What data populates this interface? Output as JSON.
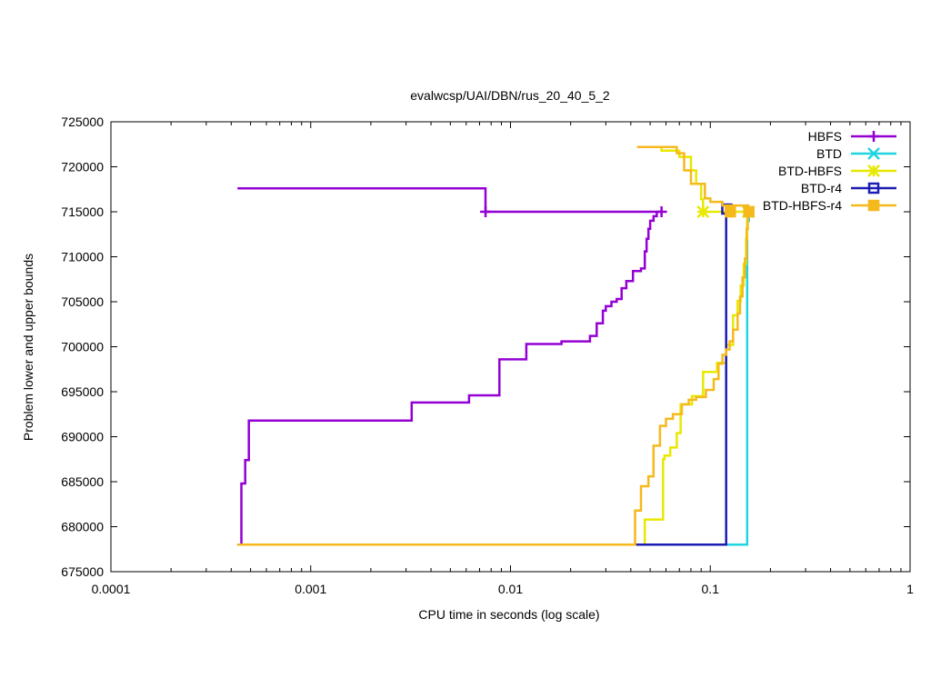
{
  "chart_data": {
    "type": "line",
    "title": "evalwcsp/UAI/DBN/rus_20_40_5_2",
    "xlabel": "CPU time in seconds (log scale)",
    "ylabel": "Problem lower and upper bounds",
    "xscale": "log",
    "xlim": [
      0.0001,
      1
    ],
    "ylim": [
      675000,
      725000
    ],
    "x_ticks": [
      {
        "value": 0.0001,
        "label": "0.0001"
      },
      {
        "value": 0.001,
        "label": "0.001"
      },
      {
        "value": 0.01,
        "label": "0.01"
      },
      {
        "value": 0.1,
        "label": "0.1"
      },
      {
        "value": 1,
        "label": "1"
      }
    ],
    "y_ticks": [
      {
        "value": 675000,
        "label": "675000"
      },
      {
        "value": 680000,
        "label": "680000"
      },
      {
        "value": 685000,
        "label": "685000"
      },
      {
        "value": 690000,
        "label": "690000"
      },
      {
        "value": 695000,
        "label": "695000"
      },
      {
        "value": 700000,
        "label": "700000"
      },
      {
        "value": 705000,
        "label": "705000"
      },
      {
        "value": 710000,
        "label": "710000"
      },
      {
        "value": 715000,
        "label": "715000"
      },
      {
        "value": 720000,
        "label": "720000"
      },
      {
        "value": 725000,
        "label": "725000"
      }
    ],
    "grid": false,
    "legend_position": "top-right",
    "series": [
      {
        "name": "HBFS",
        "color": "#9400d3",
        "marker": "plus",
        "paths": [
          [
            [
              0.00043,
              717600
            ],
            [
              0.0075,
              717600
            ],
            [
              0.0075,
              715000
            ],
            [
              0.057,
              715000
            ]
          ],
          [
            [
              0.00045,
              678000
            ],
            [
              0.00045,
              684800
            ],
            [
              0.00047,
              684800
            ],
            [
              0.00047,
              687400
            ],
            [
              0.00049,
              687400
            ],
            [
              0.00049,
              691800
            ],
            [
              0.0032,
              691800
            ],
            [
              0.0032,
              693800
            ],
            [
              0.0062,
              693800
            ],
            [
              0.0062,
              694600
            ],
            [
              0.0088,
              694600
            ],
            [
              0.0088,
              698600
            ],
            [
              0.012,
              698600
            ],
            [
              0.012,
              700300
            ],
            [
              0.018,
              700300
            ],
            [
              0.018,
              700600
            ],
            [
              0.025,
              700600
            ],
            [
              0.025,
              701200
            ],
            [
              0.027,
              701200
            ],
            [
              0.027,
              702600
            ],
            [
              0.029,
              702600
            ],
            [
              0.029,
              704000
            ],
            [
              0.03,
              704000
            ],
            [
              0.03,
              704500
            ],
            [
              0.032,
              704500
            ],
            [
              0.032,
              705000
            ],
            [
              0.034,
              705000
            ],
            [
              0.034,
              705300
            ],
            [
              0.036,
              705300
            ],
            [
              0.036,
              706500
            ],
            [
              0.038,
              706500
            ],
            [
              0.038,
              707300
            ],
            [
              0.041,
              707300
            ],
            [
              0.041,
              708400
            ],
            [
              0.045,
              708400
            ],
            [
              0.045,
              708700
            ],
            [
              0.047,
              708700
            ],
            [
              0.047,
              710600
            ],
            [
              0.048,
              710600
            ],
            [
              0.048,
              712000
            ],
            [
              0.049,
              712000
            ],
            [
              0.049,
              713100
            ],
            [
              0.05,
              713100
            ],
            [
              0.05,
              714000
            ],
            [
              0.052,
              714000
            ],
            [
              0.052,
              714500
            ],
            [
              0.054,
              714500
            ],
            [
              0.054,
              715000
            ]
          ]
        ],
        "markers": [
          [
            0.0075,
            715000
          ],
          [
            0.057,
            715000
          ]
        ]
      },
      {
        "name": "BTD",
        "color": "#20d4e0",
        "marker": "x",
        "paths": [
          [
            [
              0.00043,
              678000
            ],
            [
              0.153,
              678000
            ],
            [
              0.153,
              714000
            ],
            [
              0.156,
              714000
            ],
            [
              0.156,
              715000
            ]
          ]
        ],
        "markers": [
          [
            0.155,
            715000
          ]
        ]
      },
      {
        "name": "BTD-HBFS",
        "color": "#e8e800",
        "marker": "star",
        "paths": [
          [
            [
              0.047,
              678000
            ],
            [
              0.047,
              680800
            ],
            [
              0.058,
              680800
            ],
            [
              0.058,
              687500
            ],
            [
              0.059,
              687500
            ],
            [
              0.059,
              687900
            ],
            [
              0.063,
              687900
            ],
            [
              0.063,
              688800
            ],
            [
              0.068,
              688800
            ],
            [
              0.068,
              690400
            ],
            [
              0.071,
              690400
            ],
            [
              0.071,
              693600
            ],
            [
              0.081,
              693600
            ],
            [
              0.081,
              694500
            ],
            [
              0.092,
              694500
            ],
            [
              0.092,
              697200
            ],
            [
              0.108,
              697200
            ],
            [
              0.108,
              698200
            ],
            [
              0.12,
              698200
            ],
            [
              0.12,
              700200
            ],
            [
              0.13,
              700200
            ],
            [
              0.13,
              703500
            ],
            [
              0.137,
              703500
            ],
            [
              0.137,
              705100
            ],
            [
              0.142,
              705100
            ],
            [
              0.142,
              706800
            ],
            [
              0.147,
              706800
            ],
            [
              0.147,
              709200
            ],
            [
              0.151,
              709200
            ],
            [
              0.151,
              712000
            ],
            [
              0.153,
              712000
            ],
            [
              0.153,
              714700
            ],
            [
              0.155,
              714700
            ],
            [
              0.155,
              715000
            ]
          ],
          [
            [
              0.057,
              722300
            ],
            [
              0.057,
              721800
            ],
            [
              0.07,
              721800
            ],
            [
              0.07,
              721100
            ],
            [
              0.08,
              721100
            ],
            [
              0.08,
              719600
            ],
            [
              0.085,
              719600
            ],
            [
              0.085,
              718100
            ],
            [
              0.09,
              718100
            ],
            [
              0.09,
              716400
            ],
            [
              0.092,
              716400
            ],
            [
              0.092,
              715000
            ],
            [
              0.155,
              715000
            ]
          ]
        ],
        "markers": [
          [
            0.092,
            715000
          ],
          [
            0.155,
            715000
          ]
        ]
      },
      {
        "name": "BTD-r4",
        "color": "#1c1cb4",
        "marker": "square",
        "paths": [
          [
            [
              0.00043,
              678000
            ],
            [
              0.12,
              678000
            ],
            [
              0.12,
              715300
            ],
            [
              0.125,
              715300
            ]
          ]
        ],
        "markers": [
          [
            0.121,
            715300
          ]
        ]
      },
      {
        "name": "BTD-HBFS-r4",
        "color": "#f5b91c",
        "marker": "filled-square",
        "paths": [
          [
            [
              0.00043,
              678000
            ],
            [
              0.042,
              678000
            ],
            [
              0.042,
              681800
            ],
            [
              0.045,
              681800
            ],
            [
              0.045,
              684500
            ],
            [
              0.049,
              684500
            ],
            [
              0.049,
              685600
            ],
            [
              0.052,
              685600
            ],
            [
              0.052,
              689000
            ],
            [
              0.056,
              689000
            ],
            [
              0.056,
              691200
            ],
            [
              0.06,
              691200
            ],
            [
              0.06,
              692000
            ],
            [
              0.065,
              692000
            ],
            [
              0.065,
              692500
            ],
            [
              0.072,
              692500
            ],
            [
              0.072,
              693600
            ],
            [
              0.078,
              693600
            ],
            [
              0.078,
              694100
            ],
            [
              0.085,
              694100
            ],
            [
              0.085,
              694400
            ],
            [
              0.095,
              694400
            ],
            [
              0.095,
              695200
            ],
            [
              0.104,
              695200
            ],
            [
              0.104,
              696400
            ],
            [
              0.11,
              696400
            ],
            [
              0.11,
              698100
            ],
            [
              0.115,
              698100
            ],
            [
              0.115,
              699100
            ],
            [
              0.12,
              699100
            ],
            [
              0.12,
              699700
            ],
            [
              0.125,
              699700
            ],
            [
              0.125,
              700600
            ],
            [
              0.13,
              700600
            ],
            [
              0.13,
              701900
            ],
            [
              0.137,
              701900
            ],
            [
              0.137,
              703700
            ],
            [
              0.141,
              703700
            ],
            [
              0.141,
              705600
            ],
            [
              0.145,
              705600
            ],
            [
              0.145,
              707700
            ],
            [
              0.149,
              707700
            ],
            [
              0.149,
              709800
            ],
            [
              0.152,
              709800
            ],
            [
              0.152,
              713100
            ],
            [
              0.154,
              713100
            ],
            [
              0.154,
              715000
            ]
          ],
          [
            [
              0.043,
              722200
            ],
            [
              0.068,
              722200
            ],
            [
              0.068,
              721500
            ],
            [
              0.074,
              721500
            ],
            [
              0.074,
              719600
            ],
            [
              0.08,
              719600
            ],
            [
              0.08,
              718100
            ],
            [
              0.094,
              718100
            ],
            [
              0.094,
              716500
            ],
            [
              0.1,
              716500
            ],
            [
              0.1,
              716100
            ],
            [
              0.115,
              716100
            ],
            [
              0.115,
              715700
            ],
            [
              0.155,
              715700
            ],
            [
              0.155,
              715000
            ]
          ]
        ],
        "markers": [
          [
            0.126,
            715000
          ],
          [
            0.156,
            715000
          ]
        ]
      }
    ]
  }
}
